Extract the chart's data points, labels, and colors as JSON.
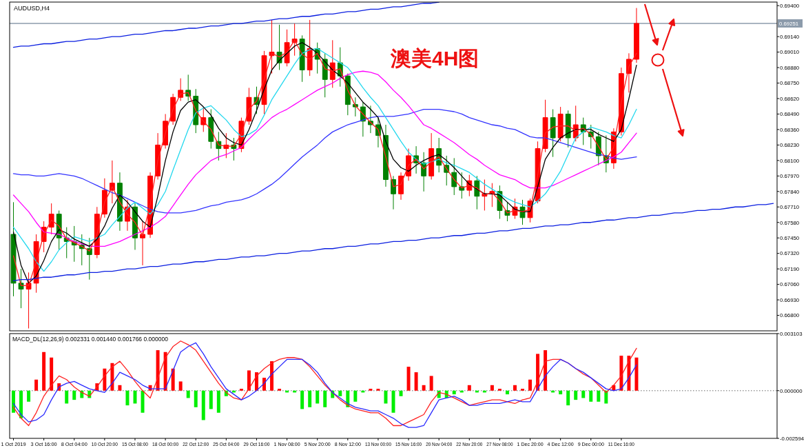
{
  "chart_data": [
    {
      "type": "candlestick",
      "title": "澳美4H图",
      "subtitle": "AUDUSD,H4",
      "categories": [
        null,
        null,
        null,
        null,
        null,
        null,
        null,
        null,
        null,
        null,
        null,
        null,
        null,
        null,
        null,
        null,
        null,
        null,
        null,
        null,
        null,
        null,
        null,
        null,
        null,
        null,
        null,
        null,
        null,
        null,
        null,
        null,
        null,
        null,
        null,
        null,
        null,
        null,
        null,
        null,
        null,
        null,
        null,
        null,
        null,
        null,
        null,
        null,
        null,
        null,
        null,
        null,
        null,
        null,
        null,
        null,
        null,
        null,
        null,
        null,
        null,
        null,
        null,
        null,
        null,
        null,
        null,
        null,
        null,
        null,
        null,
        null,
        null,
        null,
        null,
        null,
        null,
        null,
        null,
        null,
        null,
        null,
        null,
        null,
        null,
        null,
        null,
        null,
        null,
        null,
        null,
        null,
        null,
        null,
        null,
        null,
        null,
        null,
        null,
        null,
        null
      ],
      "ohlc": [
        [
          0.6748,
          0.6775,
          0.6696,
          0.6707
        ],
        [
          0.6707,
          0.6719,
          0.6686,
          0.6702
        ],
        [
          0.6702,
          0.6716,
          0.6669,
          0.6707
        ],
        [
          0.6707,
          0.6748,
          0.6699,
          0.6742
        ],
        [
          0.6742,
          0.6759,
          0.6733,
          0.6754
        ],
        [
          0.6754,
          0.6774,
          0.6748,
          0.6765
        ],
        [
          0.6765,
          0.6768,
          0.6735,
          0.6745
        ],
        [
          0.6745,
          0.6754,
          0.6728,
          0.6742
        ],
        [
          0.6742,
          0.6755,
          0.6725,
          0.6739
        ],
        [
          0.6739,
          0.6748,
          0.6722,
          0.6736
        ],
        [
          0.6736,
          0.6745,
          0.671,
          0.6731
        ],
        [
          0.6731,
          0.6771,
          0.6728,
          0.6765
        ],
        [
          0.6765,
          0.6795,
          0.6762,
          0.6785
        ],
        [
          0.6785,
          0.681,
          0.6774,
          0.6791
        ],
        [
          0.6791,
          0.68,
          0.6751,
          0.6759
        ],
        [
          0.6759,
          0.6777,
          0.6751,
          0.6771
        ],
        [
          0.6771,
          0.6775,
          0.6735,
          0.6745
        ],
        [
          0.6745,
          0.6759,
          0.6722,
          0.6748
        ],
        [
          0.6748,
          0.68,
          0.6745,
          0.6797
        ],
        [
          0.6797,
          0.6833,
          0.6794,
          0.6823
        ],
        [
          0.6823,
          0.6849,
          0.682,
          0.6843
        ],
        [
          0.6843,
          0.6866,
          0.684,
          0.6863
        ],
        [
          0.6863,
          0.6879,
          0.686,
          0.6869
        ],
        [
          0.6869,
          0.6882,
          0.686,
          0.6864
        ],
        [
          0.6864,
          0.687,
          0.6833,
          0.684
        ],
        [
          0.684,
          0.6855,
          0.6834,
          0.6846
        ],
        [
          0.6846,
          0.6853,
          0.682,
          0.6826
        ],
        [
          0.6826,
          0.6834,
          0.681,
          0.682
        ],
        [
          0.682,
          0.6833,
          0.6812,
          0.6823
        ],
        [
          0.6823,
          0.6829,
          0.681,
          0.682
        ],
        [
          0.682,
          0.6846,
          0.6817,
          0.6843
        ],
        [
          0.6843,
          0.6871,
          0.684,
          0.6863
        ],
        [
          0.6863,
          0.6872,
          0.6849,
          0.6857
        ],
        [
          0.6857,
          0.6902,
          0.6849,
          0.6898
        ],
        [
          0.6898,
          0.6928,
          0.6883,
          0.6901
        ],
        [
          0.6901,
          0.6924,
          0.6886,
          0.6892
        ],
        [
          0.6892,
          0.692,
          0.6889,
          0.6909
        ],
        [
          0.6909,
          0.6925,
          0.6898,
          0.6912
        ],
        [
          0.6912,
          0.6915,
          0.6876,
          0.6886
        ],
        [
          0.6886,
          0.6928,
          0.6881,
          0.6904
        ],
        [
          0.6904,
          0.6909,
          0.6883,
          0.6895
        ],
        [
          0.6895,
          0.69,
          0.6863,
          0.6878
        ],
        [
          0.6878,
          0.6911,
          0.6871,
          0.6892
        ],
        [
          0.6892,
          0.6905,
          0.6872,
          0.6881
        ],
        [
          0.6881,
          0.6883,
          0.6848,
          0.6857
        ],
        [
          0.6857,
          0.6863,
          0.6847,
          0.6855
        ],
        [
          0.6855,
          0.6859,
          0.683,
          0.6843
        ],
        [
          0.6843,
          0.6856,
          0.6833,
          0.684
        ],
        [
          0.684,
          0.6846,
          0.6821,
          0.6831
        ],
        [
          0.6831,
          0.684,
          0.6788,
          0.6794
        ],
        [
          0.6794,
          0.6797,
          0.6769,
          0.6782
        ],
        [
          0.6782,
          0.68,
          0.6777,
          0.6797
        ],
        [
          0.6797,
          0.682,
          0.6793,
          0.6814
        ],
        [
          0.6814,
          0.6822,
          0.6799,
          0.6808
        ],
        [
          0.6808,
          0.6817,
          0.6784,
          0.6797
        ],
        [
          0.6797,
          0.6833,
          0.6794,
          0.682
        ],
        [
          0.682,
          0.6829,
          0.68,
          0.6806
        ],
        [
          0.6806,
          0.6814,
          0.6789,
          0.68
        ],
        [
          0.68,
          0.6812,
          0.6781,
          0.6788
        ],
        [
          0.6788,
          0.68,
          0.6778,
          0.6785
        ],
        [
          0.6785,
          0.6798,
          0.678,
          0.6793
        ],
        [
          0.6793,
          0.6797,
          0.6769,
          0.678
        ],
        [
          0.678,
          0.6794,
          0.6768,
          0.6782
        ],
        [
          0.6782,
          0.6791,
          0.6771,
          0.6784
        ],
        [
          0.6784,
          0.6789,
          0.6761,
          0.6768
        ],
        [
          0.6768,
          0.6775,
          0.6759,
          0.6764
        ],
        [
          0.6764,
          0.6778,
          0.6761,
          0.6771
        ],
        [
          0.6771,
          0.6777,
          0.6756,
          0.6762
        ],
        [
          0.6762,
          0.6778,
          0.6758,
          0.6776
        ],
        [
          0.6776,
          0.6826,
          0.6774,
          0.682
        ],
        [
          0.682,
          0.6861,
          0.6817,
          0.6846
        ],
        [
          0.6846,
          0.6853,
          0.6813,
          0.6829
        ],
        [
          0.6829,
          0.6855,
          0.6826,
          0.6849
        ],
        [
          0.6849,
          0.6852,
          0.6821,
          0.6829
        ],
        [
          0.6829,
          0.6856,
          0.6826,
          0.684
        ],
        [
          0.684,
          0.6846,
          0.6823,
          0.6834
        ],
        [
          0.6834,
          0.684,
          0.682,
          0.683
        ],
        [
          0.683,
          0.6834,
          0.6806,
          0.6814
        ],
        [
          0.6814,
          0.6831,
          0.68,
          0.6808
        ],
        [
          0.6808,
          0.6837,
          0.6803,
          0.6834
        ],
        [
          0.6834,
          0.6888,
          0.6831,
          0.6883
        ],
        [
          0.6883,
          0.69,
          0.6867,
          0.6895
        ],
        [
          0.6895,
          0.6938,
          0.6892,
          0.69251
        ],
        null,
        null,
        null,
        null,
        null,
        null,
        null,
        null,
        null,
        null,
        null,
        null,
        null,
        null,
        null,
        null,
        null,
        null
      ],
      "colors": [
        "#008000",
        "#008000",
        "#ff0000",
        "#ff0000",
        "#ff0000",
        "#ff0000",
        "#008000",
        "#008000",
        "#008000",
        "#008000",
        "#008000",
        "#ff0000",
        "#ff0000",
        "#ff0000",
        "#008000",
        "#ff0000",
        "#008000",
        "#ff0000",
        "#ff0000",
        "#ff0000",
        "#ff0000",
        "#ff0000",
        "#ff0000",
        "#008000",
        "#008000",
        "#ff0000",
        "#008000",
        "#008000",
        "#ff0000",
        "#008000",
        "#ff0000",
        "#ff0000",
        "#008000",
        "#ff0000",
        "#ff0000",
        "#008000",
        "#ff0000",
        "#ff0000",
        "#008000",
        "#ff0000",
        "#008000",
        "#008000",
        "#ff0000",
        "#008000",
        "#008000",
        "#008000",
        "#008000",
        "#008000",
        "#008000",
        "#008000",
        "#008000",
        "#ff0000",
        "#ff0000",
        "#008000",
        "#008000",
        "#ff0000",
        "#008000",
        "#008000",
        "#008000",
        "#008000",
        "#ff0000",
        "#008000",
        "#ff0000",
        "#ff0000",
        "#008000",
        "#008000",
        "#ff0000",
        "#008000",
        "#ff0000",
        "#ff0000",
        "#ff0000",
        "#008000",
        "#ff0000",
        "#008000",
        "#ff0000",
        "#008000",
        "#008000",
        "#008000",
        "#008000",
        "#ff0000",
        "#ff0000",
        "#ff0000",
        "#ff0000",
        null,
        null,
        null,
        null,
        null,
        null,
        null,
        null,
        null,
        null,
        null,
        null,
        null,
        null,
        null,
        null,
        null,
        null
      ],
      "series": [
        {
          "type": "line",
          "color": "#3333ff",
          "values": [
            0.6799,
            0.6798,
            0.6798,
            0.6797,
            0.6797,
            0.6798,
            0.6799,
            0.6798,
            0.6797,
            0.6795,
            0.6792,
            0.6789,
            0.6786,
            0.6783,
            0.6781,
            0.6778,
            0.6775,
            0.6772,
            0.6769,
            0.6767,
            0.6766,
            0.6766,
            0.6766,
            0.6767,
            0.6768,
            0.677,
            0.6772,
            0.6773,
            0.6775,
            0.6776,
            0.6777,
            0.6779,
            0.6782,
            0.6786,
            0.679,
            0.6795,
            0.6801,
            0.6807,
            0.6813,
            0.6818,
            0.6823,
            0.6829,
            0.6834,
            0.6837,
            0.684,
            0.6842,
            0.6844,
            0.6846,
            0.6847,
            0.6847,
            0.6847,
            0.6848,
            0.6849,
            0.6851,
            0.6853,
            0.6853,
            0.6853,
            0.6852,
            0.6851,
            0.6849,
            0.6846,
            0.6844,
            0.6842,
            0.684,
            0.6839,
            0.6837,
            0.6836,
            0.6833,
            0.683,
            0.6829,
            0.6829,
            0.6827,
            0.6825,
            0.6823,
            0.6821,
            0.6819,
            0.6817,
            0.6815,
            0.6814,
            0.6812,
            0.6811,
            0.6812,
            0.6813,
            null,
            null,
            null,
            null,
            null,
            null,
            null,
            null,
            null,
            null,
            null,
            null,
            null,
            null,
            null,
            null,
            null,
            null
          ]
        },
        {
          "type": "line",
          "color": "#ff00ff",
          "values": [
            0.6781,
            0.6774,
            0.6767,
            0.6758,
            0.675,
            0.6749,
            0.6748,
            0.6745,
            0.6742,
            0.674,
            0.6738,
            0.6738,
            0.6738,
            0.674,
            0.6742,
            0.6745,
            0.6748,
            0.6751,
            0.6754,
            0.6758,
            0.6763,
            0.6772,
            0.6781,
            0.679,
            0.6798,
            0.6804,
            0.681,
            0.6813,
            0.6815,
            0.6818,
            0.6821,
            0.6828,
            0.6834,
            0.684,
            0.6846,
            0.685,
            0.6853,
            0.6857,
            0.6861,
            0.6865,
            0.6869,
            0.6872,
            0.6875,
            0.6879,
            0.6882,
            0.6884,
            0.6885,
            0.6884,
            0.6882,
            0.6876,
            0.6869,
            0.6863,
            0.6856,
            0.6848,
            0.684,
            0.6837,
            0.6833,
            0.6829,
            0.6825,
            0.682,
            0.6815,
            0.6811,
            0.6806,
            0.6802,
            0.6798,
            0.6796,
            0.6794,
            0.679,
            0.6787,
            0.6787,
            0.6787,
            0.6789,
            0.6792,
            0.6795,
            0.6798,
            0.6801,
            0.6804,
            0.6807,
            0.681,
            0.6813,
            0.6817,
            0.6825,
            0.6833,
            null,
            null,
            null,
            null,
            null,
            null,
            null,
            null,
            null,
            null,
            null,
            null,
            null,
            null,
            null,
            null,
            null,
            null
          ]
        },
        {
          "type": "line",
          "color": "#22d8ee",
          "values": [
            0.6754,
            0.6745,
            0.6736,
            0.6725,
            0.6717,
            0.6725,
            0.6735,
            0.6741,
            0.6746,
            0.6744,
            0.6742,
            0.6745,
            0.6748,
            0.6756,
            0.6763,
            0.677,
            0.6775,
            0.677,
            0.6765,
            0.6773,
            0.6784,
            0.6802,
            0.6819,
            0.6836,
            0.685,
            0.6854,
            0.6856,
            0.685,
            0.6844,
            0.6836,
            0.683,
            0.6832,
            0.6836,
            0.6848,
            0.6861,
            0.6871,
            0.6881,
            0.6891,
            0.69,
            0.6903,
            0.6904,
            0.69,
            0.6896,
            0.6892,
            0.6888,
            0.688,
            0.6871,
            0.6863,
            0.6856,
            0.6846,
            0.6836,
            0.6826,
            0.6817,
            0.6811,
            0.6807,
            0.6809,
            0.6811,
            0.6808,
            0.6806,
            0.6803,
            0.68,
            0.6795,
            0.679,
            0.6786,
            0.6782,
            0.6778,
            0.6775,
            0.6773,
            0.6771,
            0.6776,
            0.6782,
            0.6791,
            0.6801,
            0.6815,
            0.6829,
            0.6834,
            0.6838,
            0.6836,
            0.6834,
            0.6831,
            0.6829,
            0.684,
            0.6853,
            null,
            null,
            null,
            null,
            null,
            null,
            null,
            null,
            null,
            null,
            null,
            null,
            null,
            null,
            null,
            null,
            null,
            null
          ]
        },
        {
          "type": "line",
          "color": "#000000",
          "values": [
            0.675,
            0.6722,
            0.6707,
            0.6713,
            0.6726,
            0.6742,
            0.6752,
            0.6749,
            0.6744,
            0.6741,
            0.6738,
            0.6744,
            0.6755,
            0.677,
            0.6781,
            0.6775,
            0.6767,
            0.6759,
            0.6754,
            0.678,
            0.681,
            0.6834,
            0.6852,
            0.6859,
            0.6861,
            0.6855,
            0.6848,
            0.6837,
            0.6829,
            0.6825,
            0.6823,
            0.6836,
            0.6852,
            0.687,
            0.6886,
            0.6894,
            0.69,
            0.6906,
            0.6909,
            0.6905,
            0.69,
            0.6893,
            0.6886,
            0.6881,
            0.6875,
            0.6867,
            0.6859,
            0.6853,
            0.6846,
            0.6826,
            0.6811,
            0.6804,
            0.6801,
            0.6806,
            0.681,
            0.6813,
            0.6815,
            0.681,
            0.6804,
            0.6797,
            0.679,
            0.6786,
            0.6782,
            0.6782,
            0.6781,
            0.6775,
            0.6769,
            0.6767,
            0.6767,
            0.6788,
            0.6811,
            0.6821,
            0.6829,
            0.6833,
            0.6836,
            0.6836,
            0.6836,
            0.6832,
            0.6829,
            0.6826,
            0.6836,
            0.6862,
            0.689,
            null,
            null,
            null,
            null,
            null,
            null,
            null,
            null,
            null,
            null,
            null,
            null,
            null,
            null,
            null,
            null,
            null,
            null
          ]
        },
        {
          "type": "line",
          "color": "#ff2020",
          "values": [
            0.673,
            0.6705,
            0.6705,
            0.6725,
            0.6748,
            0.676,
            0.6755,
            0.6744,
            0.6741,
            0.6738,
            0.6734,
            0.6748,
            0.6775,
            0.6788,
            0.6775,
            0.6765,
            0.6758,
            0.6747,
            0.6773,
            0.681,
            0.6833,
            0.6853,
            0.6866,
            0.6867,
            0.6852,
            0.6843,
            0.6836,
            0.6823,
            0.6822,
            0.6822,
            0.6832,
            0.6853,
            0.686,
            0.6878,
            0.69,
            0.6897,
            0.6901,
            0.6911,
            0.6899,
            0.6895,
            0.69,
            0.6887,
            0.6885,
            0.6887,
            0.6869,
            0.6856,
            0.6849,
            0.6842,
            0.6836,
            0.6813,
            0.6788,
            0.679,
            0.6806,
            0.6811,
            0.6803,
            0.6809,
            0.6813,
            0.6803,
            0.6794,
            0.6787,
            0.6789,
            0.6787,
            0.6781,
            0.6783,
            0.6776,
            0.6766,
            0.6768,
            0.6767,
            0.6769,
            0.6798,
            0.6833,
            0.6838,
            0.6839,
            0.6839,
            0.6835,
            0.6837,
            0.6832,
            0.6822,
            0.6811,
            0.6821,
            0.6859,
            0.6889,
            0.69,
            null,
            null,
            null,
            null,
            null,
            null,
            null,
            null,
            null,
            null,
            null,
            null,
            null,
            null,
            null,
            null,
            null,
            null
          ]
        },
        {
          "type": "line",
          "color": "#0a1ee0",
          "values": [
            0.6905,
            0.6906,
            0.6906,
            0.6907,
            0.6908,
            0.6908,
            0.6909,
            0.691,
            0.691,
            0.6911,
            0.6912,
            0.6912,
            0.6913,
            0.6914,
            0.6914,
            0.6915,
            0.6916,
            0.6916,
            0.6917,
            0.6918,
            0.6919,
            0.6919,
            0.692,
            0.6921,
            0.6921,
            0.6922,
            0.6923,
            0.6923,
            0.6924,
            0.6925,
            0.6925,
            0.6926,
            0.6927,
            0.6927,
            0.6928,
            0.6929,
            0.6929,
            0.693,
            0.6931,
            0.6931,
            0.6932,
            0.6933,
            0.6933,
            0.6934,
            0.6935,
            0.6935,
            0.6936,
            0.6937,
            0.6937,
            0.6938,
            0.6939,
            0.6939,
            0.694,
            0.6941,
            0.6942,
            0.6942,
            0.6943,
            null,
            null,
            null,
            null,
            null,
            null,
            null,
            null,
            null,
            null,
            null,
            null,
            null,
            null,
            null,
            null,
            null,
            null,
            null,
            null,
            null,
            null,
            null,
            null,
            null,
            null,
            null,
            null,
            null,
            null,
            null,
            null,
            null,
            null,
            null,
            null,
            null,
            null,
            null,
            null,
            null,
            null,
            null,
            null
          ]
        },
        {
          "type": "line",
          "color": "#0a1ee0",
          "values": [
            0.6709,
            0.671,
            0.671,
            0.6711,
            0.6712,
            0.6712,
            0.6713,
            0.6714,
            0.6714,
            0.6715,
            0.6716,
            0.6716,
            0.6717,
            0.6717,
            0.6718,
            0.6719,
            0.6719,
            0.672,
            0.6721,
            0.6721,
            0.6722,
            0.6723,
            0.6723,
            0.6724,
            0.6725,
            0.6725,
            0.6726,
            0.6727,
            0.6727,
            0.6728,
            0.6729,
            0.6729,
            0.673,
            0.673,
            0.6731,
            0.6732,
            0.6732,
            0.6733,
            0.6734,
            0.6734,
            0.6735,
            0.6736,
            0.6736,
            0.6737,
            0.6738,
            0.6738,
            0.6739,
            0.674,
            0.674,
            0.6741,
            0.6742,
            0.6742,
            0.6743,
            0.6743,
            0.6744,
            0.6745,
            0.6745,
            0.6746,
            0.6747,
            0.6747,
            0.6748,
            0.6749,
            0.6749,
            0.675,
            0.6751,
            0.6751,
            0.6752,
            0.6753,
            0.6753,
            0.6754,
            0.6755,
            0.6755,
            0.6756,
            0.6756,
            0.6757,
            0.6758,
            0.6758,
            0.6759,
            0.676,
            0.676,
            0.6761,
            0.6762,
            0.6762,
            0.6763,
            0.6764,
            0.6764,
            0.6765,
            0.6766,
            0.6766,
            0.6767,
            0.6768,
            0.6768,
            0.6769,
            0.6769,
            0.677,
            0.6771,
            0.6771,
            0.6772,
            0.6773,
            0.6773,
            0.6774
          ]
        }
      ],
      "ylim": [
        0.6667,
        0.6943
      ],
      "yticks": [
        {
          "value": 0.694,
          "label": "0.69400"
        },
        {
          "value": 0.6914,
          "label": "0.69140"
        },
        {
          "value": 0.6901,
          "label": "0.69010"
        },
        {
          "value": 0.6888,
          "label": "0.68880"
        },
        {
          "value": 0.6875,
          "label": "0.68750"
        },
        {
          "value": 0.6862,
          "label": "0.68620"
        },
        {
          "value": 0.6849,
          "label": "0.68490"
        },
        {
          "value": 0.6836,
          "label": "0.68360"
        },
        {
          "value": 0.6823,
          "label": "0.68230"
        },
        {
          "value": 0.681,
          "label": "0.68100"
        },
        {
          "value": 0.6797,
          "label": "0.67970"
        },
        {
          "value": 0.6784,
          "label": "0.67840"
        },
        {
          "value": 0.6771,
          "label": "0.67710"
        },
        {
          "value": 0.6758,
          "label": "0.67580"
        },
        {
          "value": 0.6745,
          "label": "0.67450"
        },
        {
          "value": 0.6732,
          "label": "0.67320"
        },
        {
          "value": 0.6719,
          "label": "0.67190"
        },
        {
          "value": 0.6706,
          "label": "0.67060"
        },
        {
          "value": 0.6693,
          "label": "0.66930"
        },
        {
          "value": 0.668,
          "label": "0.66800"
        }
      ],
      "ref_lines": [
        {
          "axis": "y",
          "value": 0.69251,
          "label": "0.69251",
          "color": "#8c9bab"
        }
      ]
    },
    {
      "type": "bar",
      "title": "MACD_DL(12,26,9) 0.002331 0.001440 0.001766 0.000000",
      "categories": [
        "1 Oct 2019",
        null,
        null,
        null,
        "3 Oct 16:00",
        null,
        null,
        null,
        "8 Oct 04:00",
        null,
        null,
        null,
        "10 Oct 20:00",
        null,
        null,
        null,
        "15 Oct 08:00",
        null,
        null,
        null,
        "18 Oct 00:00",
        null,
        null,
        null,
        "22 Oct 12:00",
        null,
        null,
        null,
        "25 Oct 04:00",
        null,
        null,
        null,
        "29 Oct 16:00",
        null,
        null,
        null,
        "1 Nov 08:00",
        null,
        null,
        null,
        "5 Nov 20:00",
        null,
        null,
        null,
        "8 Nov 12:00",
        null,
        null,
        null,
        "13 Nov 00:00",
        null,
        null,
        null,
        "15 Nov 16:00",
        null,
        null,
        null,
        "20 Nov 04:00",
        null,
        null,
        null,
        "22 Nov 20:00",
        null,
        null,
        null,
        "27 Nov 08:00",
        null,
        null,
        null,
        "1 Dec 20:00",
        null,
        null,
        null,
        "4 Dec 12:00",
        null,
        null,
        null,
        "9 Dec 00:00",
        null,
        null,
        null,
        "11 Dec 16:00",
        null,
        null,
        null,
        null,
        null,
        null,
        null,
        null,
        null,
        null,
        null,
        null,
        null,
        null,
        null,
        null,
        null,
        null,
        null,
        null
      ],
      "values": [
        -0.0012,
        -0.0015,
        -0.0006,
        0.0006,
        0.0021,
        0.0018,
        0.0004,
        -0.0007,
        -0.0005,
        -0.0004,
        -0.0004,
        0.0004,
        0.0012,
        0.0015,
        0.0003,
        -0.0008,
        -0.0007,
        -0.0012,
        0.0003,
        0.0022,
        0.0021,
        0.0012,
        0.0005,
        -0.0004,
        -0.0009,
        -0.0016,
        -0.001,
        -0.0012,
        -0.0003,
        -0.0001,
        0.0001,
        0.0011,
        0.001,
        0.0007,
        0.0016,
        0.0001,
        -0.0001,
        -0.0001,
        -0.001,
        -0.0009,
        -0.0007,
        -0.0009,
        -0.0004,
        -0.0003,
        -0.0009,
        -0.0006,
        -0.0001,
        0.0001,
        0.0001,
        -0.0007,
        -0.0012,
        -0.0003,
        0.0013,
        0.001,
        0.0003,
        0.0008,
        -0.0004,
        -0.0004,
        -0.0002,
        -0.0001,
        0.0003,
        -0.0001,
        -0.0001,
        0.0003,
        0.0001,
        -0.0002,
        0.0003,
        0.0001,
        0.0006,
        0.002,
        0.0022,
        -0.0001,
        -0.0002,
        -0.0008,
        -0.0005,
        -0.0004,
        -0.0006,
        -0.0006,
        -0.0007,
        0.0003,
        0.0019,
        0.0019,
        0.0018,
        null,
        null,
        null,
        null,
        null,
        null,
        null,
        null,
        null,
        null,
        null,
        null,
        null,
        null,
        null,
        null,
        null,
        null
      ],
      "colors": [
        "#00ee00",
        "#00ee00",
        "#00ee00",
        "#ff0000",
        "#ff0000",
        "#ff0000",
        "#ff0000",
        "#00ee00",
        "#00ee00",
        "#00ee00",
        "#00ee00",
        "#ff0000",
        "#ff0000",
        "#ff0000",
        "#ff0000",
        "#00ee00",
        "#00ee00",
        "#00ee00",
        "#ff0000",
        "#ff0000",
        "#ff0000",
        "#ff0000",
        "#ff0000",
        "#00ee00",
        "#00ee00",
        "#00ee00",
        "#00ee00",
        "#00ee00",
        "#00ee00",
        "#00ee00",
        "#ff0000",
        "#ff0000",
        "#ff0000",
        "#ff0000",
        "#ff0000",
        "#ff0000",
        "#00ee00",
        "#00ee00",
        "#00ee00",
        "#00ee00",
        "#00ee00",
        "#00ee00",
        "#00ee00",
        "#00ee00",
        "#00ee00",
        "#00ee00",
        "#00ee00",
        "#ff0000",
        "#ff0000",
        "#00ee00",
        "#00ee00",
        "#00ee00",
        "#ff0000",
        "#ff0000",
        "#ff0000",
        "#ff0000",
        "#00ee00",
        "#00ee00",
        "#00ee00",
        "#00ee00",
        "#ff0000",
        "#00ee00",
        "#00ee00",
        "#ff0000",
        "#ff0000",
        "#00ee00",
        "#ff0000",
        "#ff0000",
        "#ff0000",
        "#ff0000",
        "#ff0000",
        "#00ee00",
        "#00ee00",
        "#00ee00",
        "#00ee00",
        "#00ee00",
        "#00ee00",
        "#00ee00",
        "#00ee00",
        "#ff0000",
        "#ff0000",
        "#ff0000",
        "#ff0000",
        null,
        null,
        null,
        null,
        null,
        null,
        null,
        null,
        null,
        null,
        null,
        null,
        null,
        null,
        null,
        null,
        null,
        null
      ],
      "series": [
        {
          "type": "line",
          "color": "#ff2020",
          "values": [
            -0.0009,
            -0.0015,
            -0.0019,
            -0.0012,
            -0.0003,
            0.0003,
            0.0008,
            0.0006,
            0.0002,
            -0.0001,
            -0.0003,
            0.0002,
            0.0008,
            0.0013,
            0.0016,
            0.0011,
            0.0005,
            0.0,
            -0.0004,
            0.0007,
            0.0018,
            0.0024,
            0.0027,
            0.0025,
            0.0022,
            0.0016,
            0.001,
            0.0004,
            -0.0001,
            -0.0004,
            -0.0005,
            0.0001,
            0.0008,
            0.0012,
            0.0015,
            0.0017,
            0.0018,
            0.0018,
            0.0017,
            0.0013,
            0.0008,
            0.0003,
            -0.0001,
            -0.0005,
            -0.0008,
            -0.001,
            -0.0011,
            -0.0012,
            -0.0012,
            -0.0015,
            -0.0019,
            -0.0019,
            -0.0017,
            -0.0015,
            -0.0013,
            -0.0006,
            -0.0001,
            -0.0002,
            -0.0004,
            -0.0006,
            -0.0008,
            -0.0007,
            -0.0006,
            -0.0005,
            -0.0005,
            -0.0006,
            -0.0007,
            -0.0005,
            -0.0004,
            0.0005,
            0.0016,
            0.0017,
            0.0017,
            0.0015,
            0.0012,
            0.0009,
            0.0007,
            0.0003,
            -0.0001,
            0.0003,
            0.0008,
            0.0016,
            0.0023,
            null,
            null,
            null,
            null,
            null,
            null,
            null,
            null,
            null,
            null,
            null,
            null,
            null,
            null,
            null,
            null,
            null,
            null
          ]
        },
        {
          "type": "line",
          "color": "#2a2aff",
          "values": [
            -0.0007,
            -0.0013,
            -0.0017,
            -0.0016,
            -0.0013,
            -0.0005,
            0.0002,
            0.0004,
            0.0005,
            0.0003,
            0.0001,
            0.0,
            -0.0001,
            0.0004,
            0.001,
            0.0008,
            0.0006,
            0.0003,
            0.0001,
            0.0001,
            0.0001,
            0.0011,
            0.0021,
            0.0024,
            0.0026,
            0.002,
            0.0013,
            0.0007,
            0.0001,
            -0.0002,
            -0.0005,
            -0.0003,
            0.0,
            0.0004,
            0.0009,
            0.0013,
            0.0017,
            0.0017,
            0.0017,
            0.0014,
            0.001,
            0.0004,
            -0.0001,
            -0.0004,
            -0.0007,
            -0.0009,
            -0.001,
            -0.0011,
            -0.0011,
            -0.0013,
            -0.0015,
            -0.0018,
            -0.002,
            -0.002,
            -0.0019,
            -0.0012,
            -0.0005,
            -0.0004,
            -0.0003,
            -0.0005,
            -0.0008,
            -0.0008,
            -0.0007,
            -0.0007,
            -0.0007,
            -0.0006,
            -0.0005,
            -0.0006,
            -0.0006,
            0.0001,
            0.0008,
            0.0013,
            0.0017,
            0.0015,
            0.0012,
            0.001,
            0.0007,
            0.0004,
            0.0001,
            0.0,
            0.0001,
            0.0007,
            0.0014,
            null,
            null,
            null,
            null,
            null,
            null,
            null,
            null,
            null,
            null,
            null,
            null,
            null,
            null,
            null,
            null,
            null,
            null
          ]
        }
      ],
      "ylim": [
        -0.002594,
        0.003103
      ],
      "yticks": [
        0.003103,
        {
          "value": 0,
          "label": "0.000000"
        },
        -0.002594
      ],
      "ref_lines": [
        {
          "axis": "y",
          "value": 0,
          "color": "#999999",
          "line_style": "dotted"
        }
      ]
    }
  ]
}
